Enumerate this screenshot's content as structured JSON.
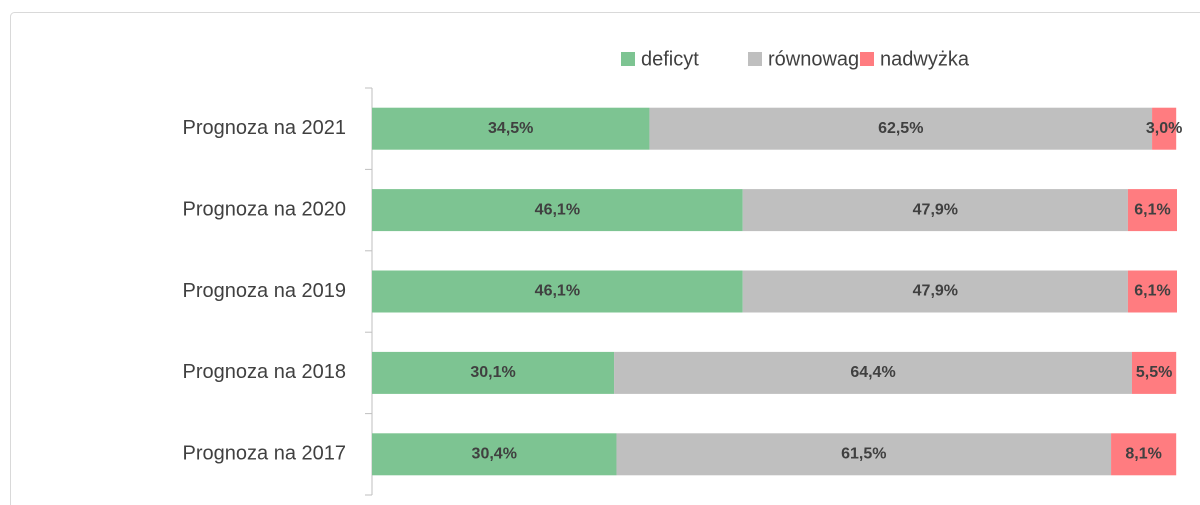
{
  "chart_data": {
    "type": "stacked_barh",
    "categories": [
      "Prognoza na 2021",
      "Prognoza na 2020",
      "Prognoza na 2019",
      "Prognoza na 2018",
      "Prognoza na 2017"
    ],
    "series": [
      {
        "name": "deficyt",
        "color": "#7dc492",
        "values": [
          34.5,
          46.1,
          46.1,
          30.1,
          30.4
        ],
        "value_labels": [
          "34,5%",
          "46,1%",
          "46,1%",
          "30,1%",
          "30,4%"
        ]
      },
      {
        "name": "równowaga",
        "color": "#bfbfbf",
        "values": [
          62.5,
          47.9,
          47.9,
          64.4,
          61.5
        ],
        "value_labels": [
          "62,5%",
          "47,9%",
          "47,9%",
          "64,4%",
          "61,5%"
        ]
      },
      {
        "name": "nadwyżka",
        "color": "#ff7c80",
        "values": [
          3.0,
          6.1,
          6.1,
          5.5,
          8.1
        ],
        "value_labels": [
          "3,0%",
          "6,1%",
          "6,1%",
          "5,5%",
          "8,1%"
        ]
      }
    ],
    "legend": "top"
  }
}
